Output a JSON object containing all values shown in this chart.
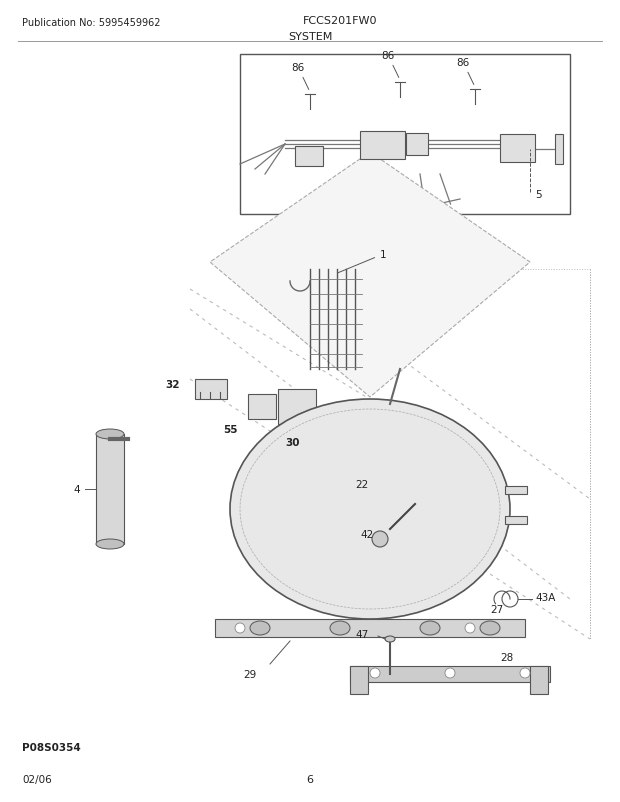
{
  "title": "SYSTEM",
  "pub_no": "Publication No: 5995459962",
  "model": "FCCS201FW0",
  "date": "02/06",
  "page": "6",
  "part_code": "P08S0354",
  "bg_color": "#ffffff",
  "text_color": "#222222",
  "line_color": "#555555"
}
